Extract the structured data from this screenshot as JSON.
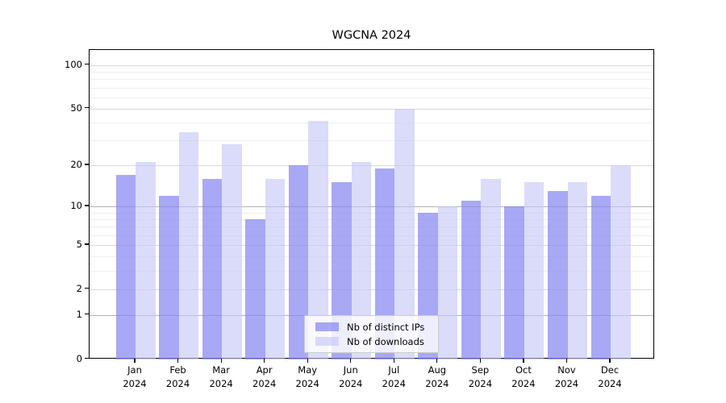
{
  "title": "WGCNA 2024",
  "chart_data": {
    "type": "bar",
    "title": "WGCNA 2024",
    "categories": [
      "Jan 2024",
      "Feb 2024",
      "Mar 2024",
      "Apr 2024",
      "May 2024",
      "Jun 2024",
      "Jul 2024",
      "Aug 2024",
      "Sep 2024",
      "Oct 2024",
      "Nov 2024",
      "Dec 2024"
    ],
    "month_labels": [
      "Jan",
      "Feb",
      "Mar",
      "Apr",
      "May",
      "Jun",
      "Jul",
      "Aug",
      "Sep",
      "Oct",
      "Nov",
      "Dec"
    ],
    "year_label": "2024",
    "series": [
      {
        "name": "Nb of distinct IPs",
        "color": "rgba(134,134,240,0.72)",
        "values": [
          17,
          12,
          16,
          8,
          20,
          15,
          19,
          9,
          11,
          10,
          13,
          12
        ]
      },
      {
        "name": "Nb of downloads",
        "color": "rgba(197,197,247,0.62)",
        "values": [
          21,
          34,
          28,
          16,
          41,
          21,
          50,
          10,
          16,
          15,
          15,
          20
        ]
      }
    ],
    "yscale": "log1p",
    "ylim": [
      0,
      126
    ],
    "yticks": [
      0,
      1,
      2,
      5,
      10,
      20,
      50,
      100
    ],
    "gridlines": {
      "emphasized": [
        1,
        10
      ],
      "major": [
        2,
        5,
        20,
        50,
        100
      ],
      "minor": [
        3,
        4,
        6,
        7,
        8,
        9,
        30,
        40,
        60,
        70,
        80,
        90
      ]
    },
    "grid": true,
    "legend_position": "lower center",
    "colors": {
      "bar_distinct_ips": "rgba(134,134,240,0.72)",
      "bar_downloads": "rgba(197,197,247,0.62)",
      "grid_emphasized": "#b3b3b3",
      "grid_major": "#d9d9d9",
      "grid_minor": "#efefef",
      "spine": "#000000",
      "legend_border": "#cccccc"
    }
  }
}
